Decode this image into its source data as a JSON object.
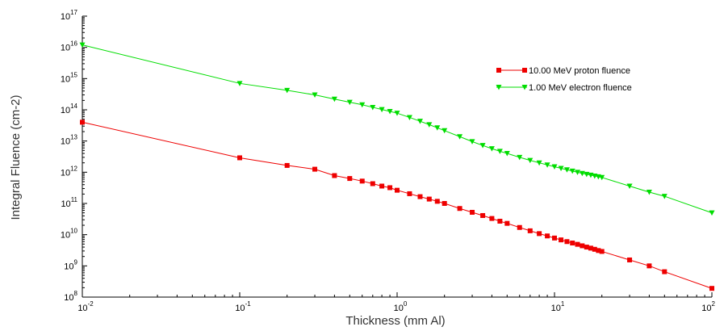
{
  "chart_data": {
    "type": "line",
    "title": "",
    "xlabel": "Thickness (mm Al)",
    "ylabel": "Integral Fluence (cm-2)",
    "xscale": "log",
    "yscale": "log",
    "xlim": [
      0.01,
      100
    ],
    "ylim": [
      100000000.0,
      1e+17
    ],
    "grid": false,
    "legend_position": "top-right",
    "x_ticks": [
      {
        "value": 0.01,
        "base": "10",
        "exp": "-2"
      },
      {
        "value": 0.1,
        "base": "10",
        "exp": "-1"
      },
      {
        "value": 1,
        "base": "10",
        "exp": "0"
      },
      {
        "value": 10,
        "base": "10",
        "exp": "1"
      },
      {
        "value": 100,
        "base": "10",
        "exp": "2"
      }
    ],
    "y_ticks": [
      {
        "value": 100000000.0,
        "base": "10",
        "exp": "8"
      },
      {
        "value": 1000000000.0,
        "base": "10",
        "exp": "9"
      },
      {
        "value": 10000000000.0,
        "base": "10",
        "exp": "10"
      },
      {
        "value": 100000000000.0,
        "base": "10",
        "exp": "11"
      },
      {
        "value": 1000000000000.0,
        "base": "10",
        "exp": "12"
      },
      {
        "value": 10000000000000.0,
        "base": "10",
        "exp": "13"
      },
      {
        "value": 100000000000000.0,
        "base": "10",
        "exp": "14"
      },
      {
        "value": 1000000000000000.0,
        "base": "10",
        "exp": "15"
      },
      {
        "value": 1e+16,
        "base": "10",
        "exp": "16"
      },
      {
        "value": 1e+17,
        "base": "10",
        "exp": "17"
      }
    ],
    "series": [
      {
        "name": "10.00 MeV proton fluence",
        "color": "#ee0000",
        "marker": "square",
        "x": [
          0.01,
          0.1,
          0.2,
          0.3,
          0.4,
          0.5,
          0.6,
          0.7,
          0.8,
          0.9,
          1,
          1.2,
          1.4,
          1.6,
          1.8,
          2,
          2.5,
          3,
          3.5,
          4,
          4.5,
          5,
          6,
          7,
          8,
          9,
          10,
          11,
          12,
          13,
          14,
          15,
          16,
          17,
          18,
          19,
          20,
          30,
          40,
          50,
          100
        ],
        "y": [
          40000000000000.0,
          2900000000000.0,
          1650000000000.0,
          1250000000000.0,
          780000000000.0,
          630000000000.0,
          520000000000.0,
          430000000000.0,
          360000000000.0,
          320000000000.0,
          265000000000.0,
          205000000000.0,
          165000000000.0,
          138000000000.0,
          117000000000.0,
          100000000000.0,
          69000000000.0,
          52000000000.0,
          41000000000.0,
          33000000000.0,
          27000000000.0,
          23000000000.0,
          17000000000.0,
          13300000000.0,
          10800000000.0,
          9100000000.0,
          7800000000.0,
          6800000000.0,
          6000000000.0,
          5400000000.0,
          4900000000.0,
          4400000000.0,
          4000000000.0,
          3700000000.0,
          3400000000.0,
          3100000000.0,
          2900000000.0,
          1550000000.0,
          1000000000.0,
          650000000.0,
          190000000.0
        ]
      },
      {
        "name": "1.00 MeV electron fluence",
        "color": "#00dd00",
        "marker": "triangle-down",
        "x": [
          0.01,
          0.1,
          0.2,
          0.3,
          0.4,
          0.5,
          0.6,
          0.7,
          0.8,
          0.9,
          1,
          1.2,
          1.4,
          1.6,
          1.8,
          2,
          2.5,
          3,
          3.5,
          4,
          4.5,
          5,
          6,
          7,
          8,
          9,
          10,
          11,
          12,
          13,
          14,
          15,
          16,
          17,
          18,
          19,
          20,
          30,
          40,
          50,
          100
        ],
        "y": [
          1.2e+16,
          700000000000000.0,
          420000000000000.0,
          300000000000000.0,
          220000000000000.0,
          175000000000000.0,
          145000000000000.0,
          120000000000000.0,
          102000000000000.0,
          89000000000000.0,
          78000000000000.0,
          57000000000000.0,
          43000000000000.0,
          33500000000000.0,
          26500000000000.0,
          21500000000000.0,
          13800000000000.0,
          9600000000000.0,
          7200000000000.0,
          5700000000000.0,
          4700000000000.0,
          4000000000000.0,
          3000000000000.0,
          2400000000000.0,
          2000000000000.0,
          1720000000000.0,
          1500000000000.0,
          1330000000000.0,
          1200000000000.0,
          1090000000000.0,
          1000000000000.0,
          920000000000.0,
          860000000000.0,
          810000000000.0,
          760000000000.0,
          720000000000.0,
          680000000000.0,
          360000000000.0,
          230000000000.0,
          170000000000.0,
          50000000000.0
        ]
      }
    ]
  }
}
